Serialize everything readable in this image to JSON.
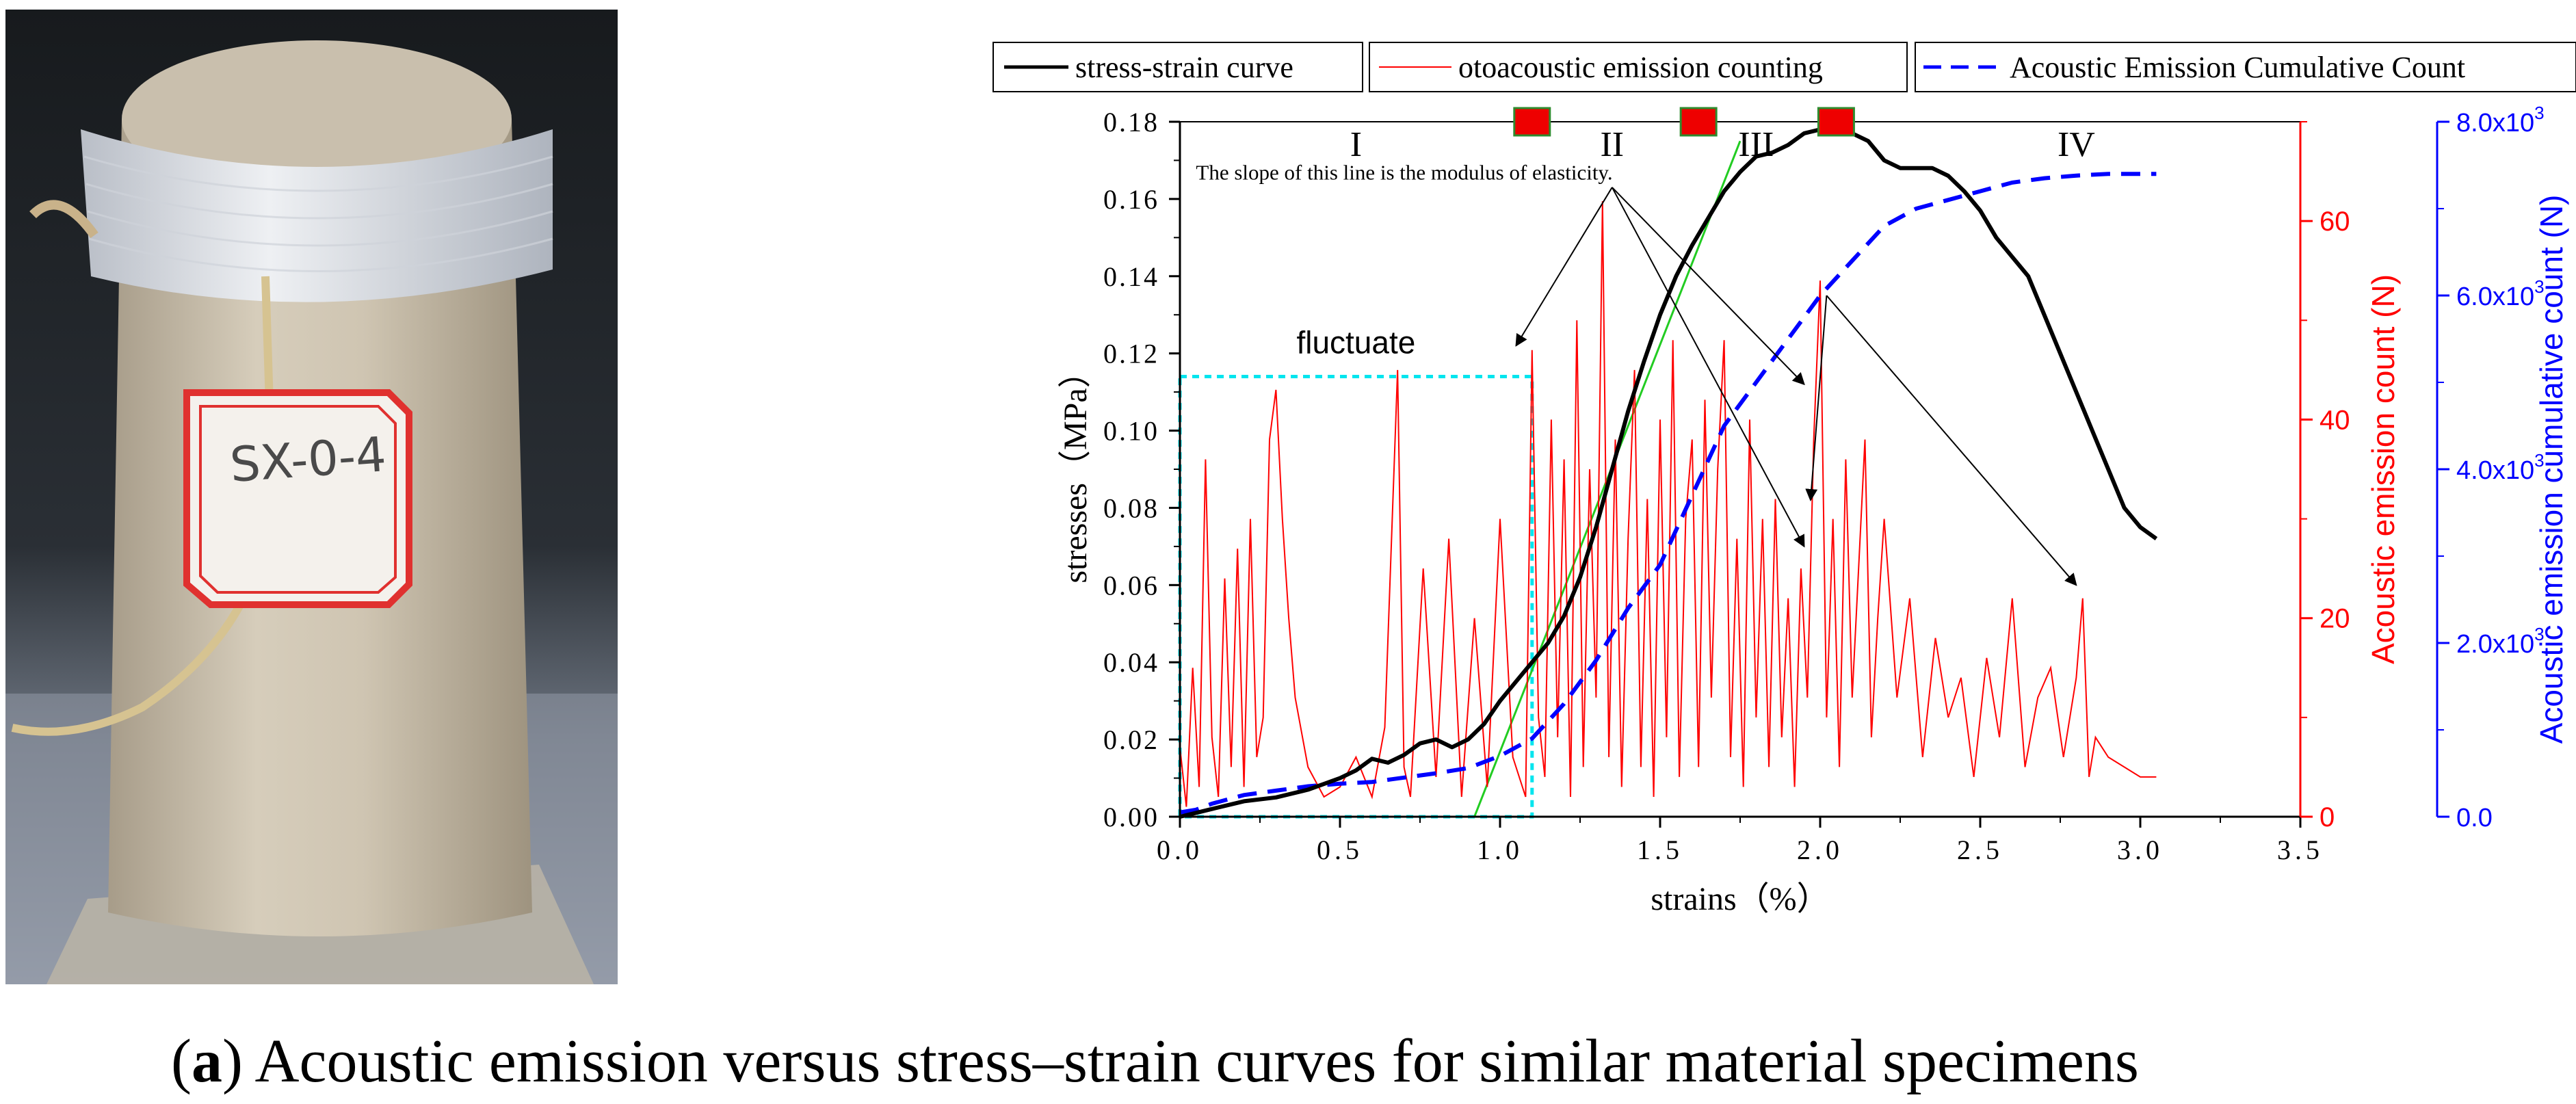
{
  "caption": {
    "prefix_open": "(",
    "label": "a",
    "prefix_close": ")",
    "text": " Acoustic emission versus stress–strain curves for similar material specimens"
  },
  "photo": {
    "specimen_label": "SX-0-4"
  },
  "colors": {
    "stress": "#000000",
    "ae": "#ff0000",
    "cumulative": "#0000ff",
    "box": "#00e5ee",
    "marker": "#ee0000",
    "slope_line": "#22cc22"
  },
  "chart_data": {
    "type": "line",
    "legend_position": "top",
    "xlabel": "strains（%）",
    "ylabel_left": "stresses（MPa）",
    "ylabel_right1": "Acoustic emission count (N)",
    "ylabel_right2": "Acoustic emission cumulative count (N)",
    "xlim": [
      0,
      3.5
    ],
    "ylim_left": [
      0,
      0.18
    ],
    "ylim_right1": [
      0,
      70
    ],
    "ylim_right2": [
      0,
      8000
    ],
    "x_ticks": [
      "0.0",
      "0.5",
      "1.0",
      "1.5",
      "2.0",
      "2.5",
      "3.0",
      "3.5"
    ],
    "y_ticks_left": [
      "0.00",
      "0.02",
      "0.04",
      "0.06",
      "0.08",
      "0.10",
      "0.12",
      "0.14",
      "0.16",
      "0.18"
    ],
    "y_ticks_right1": [
      "0",
      "20",
      "40",
      "60"
    ],
    "y_ticks_right2": [
      "0.0",
      "2.0x10",
      "4.0x10",
      "6.0x10",
      "8.0x10"
    ],
    "y_ticks_right2_exp": "3",
    "legend": [
      "stress-strain curve",
      "otoacoustic emission counting",
      "Acoustic Emission Cumulative Count"
    ],
    "stages": [
      "I",
      "II",
      "III",
      "IV"
    ],
    "stage_x": [
      0.55,
      1.35,
      1.8,
      2.8
    ],
    "marker_x": [
      1.1,
      1.62,
      2.05
    ],
    "annotations": {
      "fluctuate": "fluctuate",
      "slope": "The slope of this line is the modulus of elasticity."
    },
    "fluctuate_box": {
      "x": [
        0.0,
        1.1
      ],
      "y_stress": [
        0,
        0.114
      ]
    },
    "slope_line": {
      "x": [
        0.92,
        1.75
      ],
      "y_stress": [
        0,
        0.175
      ]
    },
    "arrows": [
      {
        "from": [
          1.35,
          0.163
        ],
        "to": [
          1.05,
          0.122
        ]
      },
      {
        "from": [
          1.35,
          0.163
        ],
        "to": [
          1.95,
          0.07
        ]
      },
      {
        "from": [
          1.35,
          0.163
        ],
        "to": [
          1.95,
          0.112
        ]
      },
      {
        "from": [
          2.02,
          0.135
        ],
        "to": [
          1.97,
          0.082
        ]
      },
      {
        "from": [
          2.02,
          0.135
        ],
        "to": [
          2.8,
          0.06
        ]
      }
    ],
    "series": [
      {
        "name": "stress-strain curve",
        "axis": "left",
        "x": [
          0.0,
          0.05,
          0.1,
          0.15,
          0.2,
          0.3,
          0.4,
          0.5,
          0.55,
          0.6,
          0.65,
          0.7,
          0.75,
          0.8,
          0.85,
          0.9,
          0.95,
          1.0,
          1.05,
          1.1,
          1.15,
          1.2,
          1.25,
          1.3,
          1.35,
          1.4,
          1.45,
          1.5,
          1.55,
          1.6,
          1.65,
          1.7,
          1.75,
          1.8,
          1.85,
          1.9,
          1.95,
          2.0,
          2.05,
          2.1,
          2.15,
          2.2,
          2.25,
          2.3,
          2.35,
          2.4,
          2.45,
          2.5,
          2.55,
          2.6,
          2.65,
          2.7,
          2.75,
          2.8,
          2.85,
          2.9,
          2.95,
          3.0,
          3.05
        ],
        "values": [
          0.0,
          0.001,
          0.002,
          0.003,
          0.004,
          0.005,
          0.007,
          0.01,
          0.012,
          0.015,
          0.014,
          0.016,
          0.019,
          0.02,
          0.018,
          0.02,
          0.024,
          0.03,
          0.035,
          0.04,
          0.045,
          0.052,
          0.062,
          0.075,
          0.09,
          0.105,
          0.118,
          0.13,
          0.14,
          0.148,
          0.155,
          0.162,
          0.167,
          0.171,
          0.172,
          0.174,
          0.177,
          0.178,
          0.178,
          0.177,
          0.175,
          0.17,
          0.168,
          0.168,
          0.168,
          0.166,
          0.162,
          0.157,
          0.15,
          0.145,
          0.14,
          0.13,
          0.12,
          0.11,
          0.1,
          0.09,
          0.08,
          0.075,
          0.072
        ]
      },
      {
        "name": "otoacoustic emission counting",
        "axis": "right1",
        "x": [
          0.0,
          0.02,
          0.04,
          0.06,
          0.08,
          0.1,
          0.12,
          0.14,
          0.16,
          0.18,
          0.2,
          0.22,
          0.24,
          0.26,
          0.28,
          0.3,
          0.32,
          0.34,
          0.36,
          0.4,
          0.45,
          0.5,
          0.55,
          0.6,
          0.64,
          0.68,
          0.7,
          0.72,
          0.76,
          0.8,
          0.84,
          0.88,
          0.92,
          0.96,
          1.0,
          1.04,
          1.08,
          1.1,
          1.12,
          1.14,
          1.16,
          1.18,
          1.2,
          1.22,
          1.24,
          1.26,
          1.28,
          1.3,
          1.32,
          1.34,
          1.36,
          1.38,
          1.4,
          1.42,
          1.44,
          1.46,
          1.48,
          1.5,
          1.52,
          1.54,
          1.56,
          1.58,
          1.6,
          1.62,
          1.64,
          1.66,
          1.68,
          1.7,
          1.72,
          1.74,
          1.76,
          1.78,
          1.8,
          1.82,
          1.84,
          1.86,
          1.88,
          1.9,
          1.92,
          1.94,
          1.96,
          1.98,
          2.0,
          2.02,
          2.04,
          2.06,
          2.08,
          2.1,
          2.12,
          2.14,
          2.16,
          2.18,
          2.2,
          2.24,
          2.28,
          2.32,
          2.36,
          2.4,
          2.44,
          2.48,
          2.52,
          2.56,
          2.6,
          2.64,
          2.68,
          2.72,
          2.76,
          2.8,
          2.82,
          2.84,
          2.86,
          2.9,
          3.0,
          3.05
        ],
        "values": [
          7,
          1,
          15,
          3,
          36,
          8,
          2,
          24,
          5,
          27,
          3,
          30,
          6,
          10,
          38,
          43,
          30,
          20,
          12,
          5,
          2,
          3,
          6,
          2,
          9,
          45,
          5,
          2,
          25,
          4,
          28,
          2,
          20,
          3,
          30,
          6,
          2,
          47,
          10,
          4,
          40,
          8,
          36,
          2,
          50,
          5,
          35,
          12,
          62,
          6,
          38,
          3,
          28,
          45,
          5,
          32,
          2,
          40,
          8,
          48,
          4,
          30,
          38,
          5,
          42,
          12,
          35,
          48,
          6,
          28,
          3,
          40,
          10,
          30,
          5,
          32,
          8,
          22,
          3,
          25,
          12,
          38,
          54,
          10,
          30,
          5,
          36,
          12,
          25,
          38,
          8,
          20,
          30,
          12,
          22,
          6,
          18,
          10,
          14,
          4,
          16,
          8,
          22,
          5,
          12,
          15,
          6,
          14,
          22,
          4,
          8,
          6,
          4,
          4
        ]
      },
      {
        "name": "Acoustic Emission Cumulative Count",
        "axis": "right2",
        "x": [
          0.0,
          0.05,
          0.1,
          0.15,
          0.2,
          0.3,
          0.4,
          0.5,
          0.6,
          0.7,
          0.8,
          0.9,
          1.0,
          1.1,
          1.2,
          1.3,
          1.4,
          1.5,
          1.6,
          1.7,
          1.8,
          1.9,
          2.0,
          2.1,
          2.2,
          2.3,
          2.4,
          2.5,
          2.6,
          2.7,
          2.8,
          2.9,
          3.0,
          3.05
        ],
        "values": [
          50,
          80,
          150,
          200,
          250,
          300,
          350,
          380,
          400,
          450,
          500,
          560,
          700,
          900,
          1300,
          1800,
          2400,
          2900,
          3700,
          4500,
          5000,
          5500,
          6000,
          6400,
          6800,
          7000,
          7100,
          7200,
          7300,
          7350,
          7380,
          7400,
          7400,
          7400
        ]
      }
    ]
  }
}
